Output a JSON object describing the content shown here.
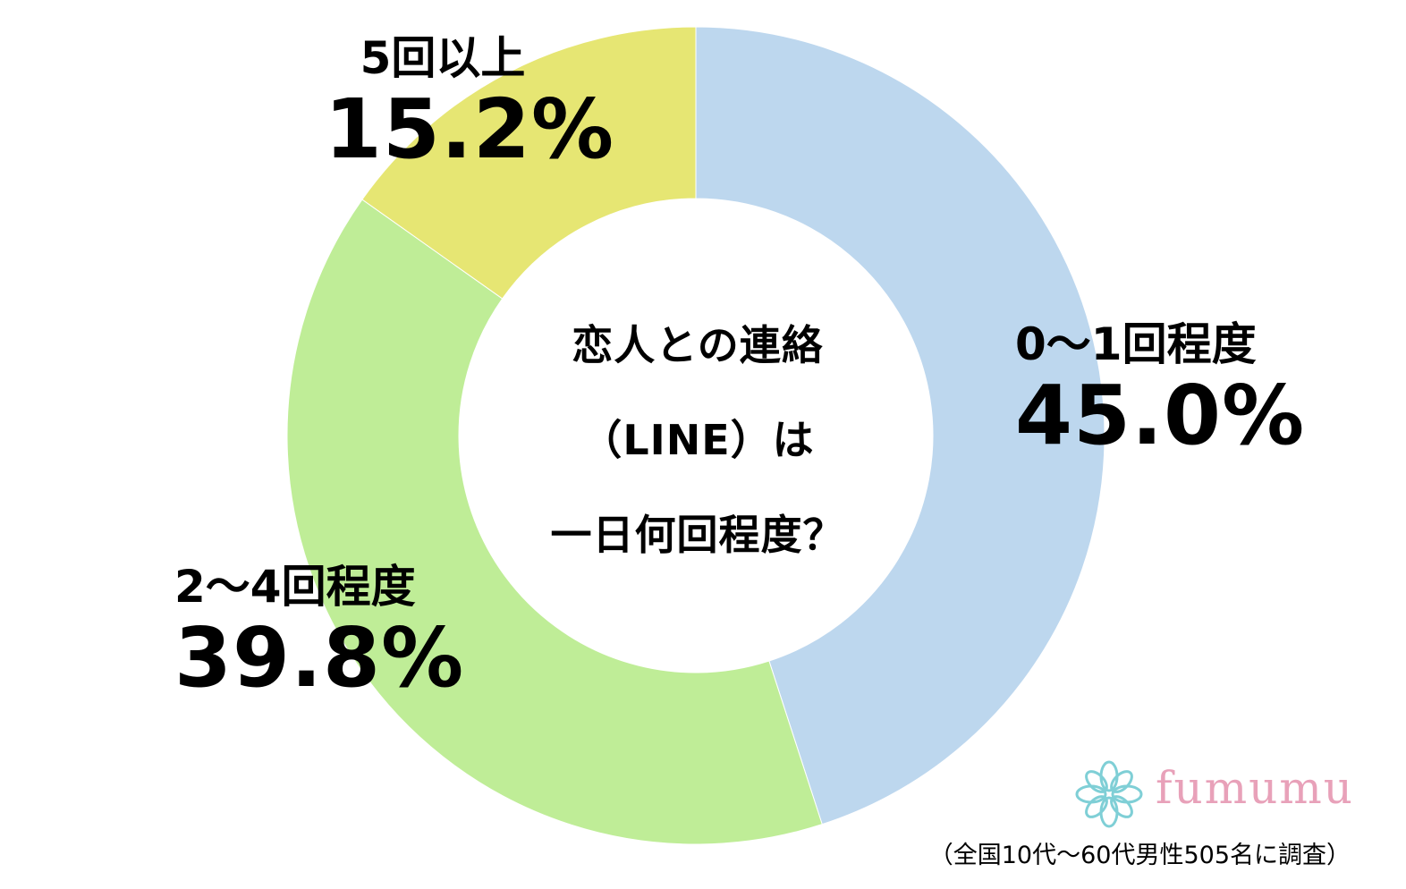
{
  "chart_data": {
    "type": "pie",
    "variant": "donut",
    "title_lines": [
      "恋人との連絡",
      "（LINE）は",
      "一日何回程度？"
    ],
    "categories": [
      "0～1回程度",
      "2～4回程度",
      "5回以上"
    ],
    "values": [
      45.0,
      39.8,
      15.2
    ],
    "value_labels": [
      "45.0%",
      "39.8%",
      "15.2%"
    ],
    "colors": [
      "#bdd7ee",
      "#bfed97",
      "#e6e673"
    ],
    "start": "12 o'clock",
    "direction": "clockwise"
  },
  "brand": {
    "name": "fumumu",
    "text_color": "#e8a1b9",
    "icon": "flower-logo-icon",
    "icon_color": "#7fcfd6"
  },
  "footnote": "（全国10代～60代男性505名に調査）"
}
